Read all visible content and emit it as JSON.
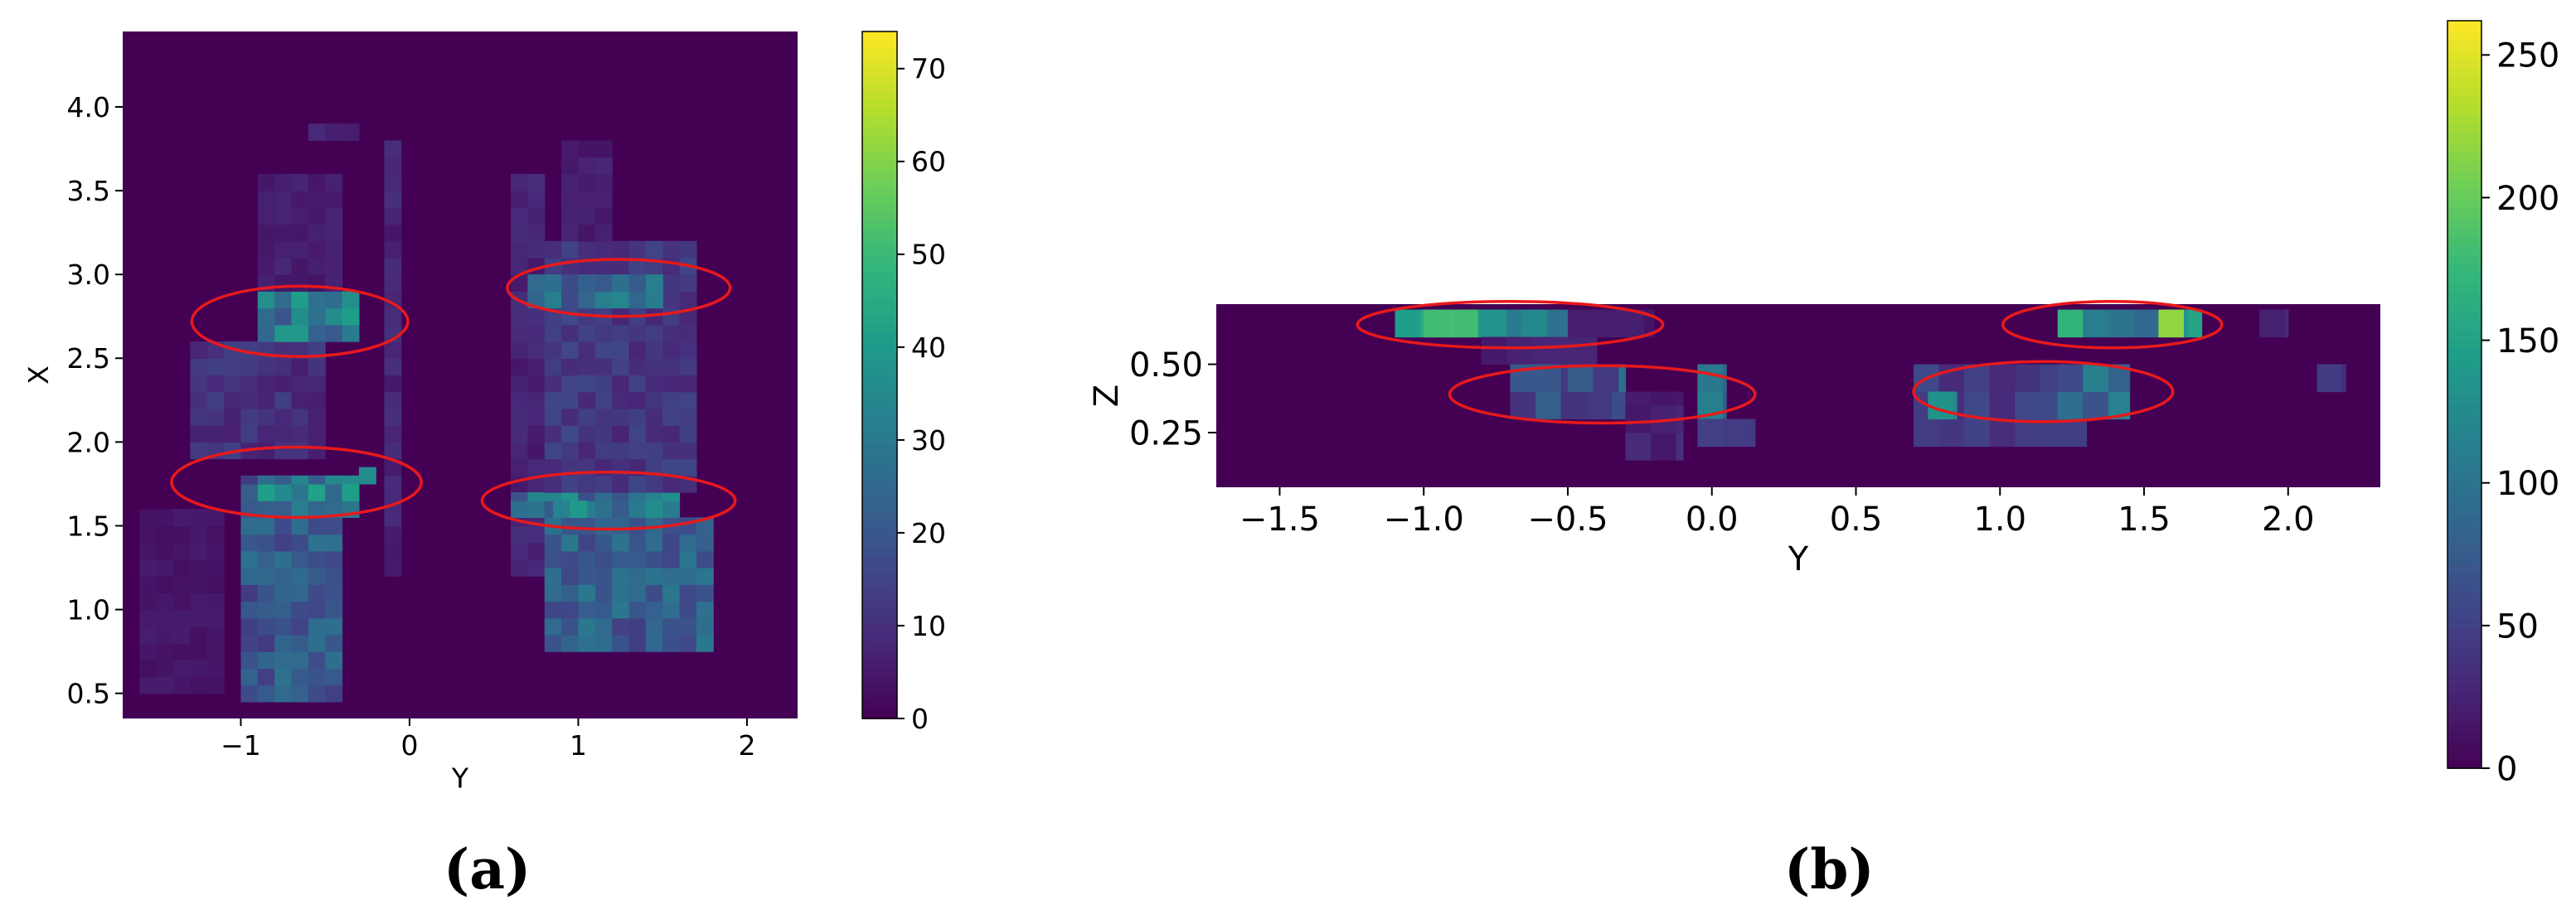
{
  "chart_data": [
    {
      "type": "heatmap",
      "panel": "(a)",
      "title": "",
      "xlabel": "Y",
      "ylabel": "X",
      "xlim": [
        -1.7,
        2.3
      ],
      "ylim": [
        0.35,
        4.45
      ],
      "xticks": [
        -1,
        0,
        1,
        2
      ],
      "xtick_labels": [
        "−1",
        "0",
        "1",
        "2"
      ],
      "yticks": [
        0.5,
        1.0,
        1.5,
        2.0,
        2.5,
        3.0,
        3.5,
        4.0
      ],
      "ytick_labels": [
        "0.5",
        "1.0",
        "1.5",
        "2.0",
        "2.5",
        "3.0",
        "3.5",
        "4.0"
      ],
      "bin_size": {
        "x": 0.1,
        "y": 0.1
      },
      "colorbar": {
        "min": 0,
        "max": 74,
        "ticks": [
          0,
          10,
          20,
          30,
          40,
          50,
          60,
          70
        ],
        "colormap": "viridis"
      },
      "clusters": [
        {
          "x": [
            -1.6,
            -1.1
          ],
          "y": [
            0.5,
            1.6
          ],
          "peak": 6
        },
        {
          "x": [
            -1.0,
            -0.4
          ],
          "y": [
            0.45,
            1.8
          ],
          "peak": 28
        },
        {
          "x": [
            -0.9,
            -0.3
          ],
          "y": [
            1.55,
            1.8
          ],
          "peak": 42
        },
        {
          "x": [
            -0.3,
            -0.2
          ],
          "y": [
            1.75,
            1.85
          ],
          "peak": 73
        },
        {
          "x": [
            -1.3,
            -0.5
          ],
          "y": [
            1.9,
            2.6
          ],
          "peak": 14
        },
        {
          "x": [
            -0.9,
            -0.3
          ],
          "y": [
            2.6,
            2.9
          ],
          "peak": 42
        },
        {
          "x": [
            -0.9,
            -0.4
          ],
          "y": [
            2.9,
            3.6
          ],
          "peak": 8
        },
        {
          "x": [
            -0.6,
            -0.3
          ],
          "y": [
            3.8,
            3.9
          ],
          "peak": 10
        },
        {
          "x": [
            -0.15,
            -0.05
          ],
          "y": [
            1.2,
            3.8
          ],
          "peak": 10
        },
        {
          "x": [
            0.6,
            0.8
          ],
          "y": [
            1.2,
            3.6
          ],
          "peak": 10
        },
        {
          "x": [
            0.8,
            1.8
          ],
          "y": [
            0.75,
            1.55
          ],
          "peak": 30
        },
        {
          "x": [
            0.6,
            1.6
          ],
          "y": [
            1.55,
            1.7
          ],
          "peak": 40
        },
        {
          "x": [
            0.85,
            1.05
          ],
          "y": [
            1.55,
            1.65
          ],
          "peak": 72
        },
        {
          "x": [
            0.8,
            1.7
          ],
          "y": [
            1.7,
            3.2
          ],
          "peak": 16
        },
        {
          "x": [
            0.7,
            1.5
          ],
          "y": [
            2.8,
            3.0
          ],
          "peak": 35
        },
        {
          "x": [
            0.9,
            1.2
          ],
          "y": [
            3.2,
            3.8
          ],
          "peak": 8
        }
      ],
      "annotations": [
        {
          "shape": "ellipse",
          "cx": -0.65,
          "cy": 2.72,
          "rx": 0.64,
          "ry": 0.21,
          "color": "#e8191b"
        },
        {
          "shape": "ellipse",
          "cx": -0.67,
          "cy": 1.76,
          "rx": 0.74,
          "ry": 0.21,
          "color": "#e8191b"
        },
        {
          "shape": "ellipse",
          "cx": 1.24,
          "cy": 2.92,
          "rx": 0.66,
          "ry": 0.17,
          "color": "#e8191b"
        },
        {
          "shape": "ellipse",
          "cx": 1.18,
          "cy": 1.65,
          "rx": 0.75,
          "ry": 0.17,
          "color": "#e8191b"
        }
      ]
    },
    {
      "type": "heatmap",
      "panel": "(b)",
      "title": "",
      "xlabel": "Y",
      "ylabel": "Z",
      "xlim": [
        -1.72,
        2.32
      ],
      "ylim": [
        0.05,
        0.72
      ],
      "xticks": [
        -1.5,
        -1.0,
        -0.5,
        0.0,
        0.5,
        1.0,
        1.5,
        2.0
      ],
      "xtick_labels": [
        "−1.5",
        "−1.0",
        "−0.5",
        "0.0",
        "0.5",
        "1.0",
        "1.5",
        "2.0"
      ],
      "yticks": [
        0.25,
        0.5
      ],
      "ytick_labels": [
        "0.25",
        "0.50"
      ],
      "bin_size": {
        "x": 0.088,
        "y": 0.1
      },
      "colorbar": {
        "min": 0,
        "max": 262,
        "ticks": [
          0,
          50,
          100,
          150,
          200,
          250
        ],
        "colormap": "viridis"
      },
      "clusters": [
        {
          "x": [
            -1.1,
            -0.5
          ],
          "y": [
            0.6,
            0.7
          ],
          "peak": 170
        },
        {
          "x": [
            -1.0,
            -0.9
          ],
          "y": [
            0.6,
            0.7
          ],
          "peak": 255
        },
        {
          "x": [
            -0.9,
            -0.8
          ],
          "y": [
            0.6,
            0.7
          ],
          "peak": 210
        },
        {
          "x": [
            -0.8,
            -0.7
          ],
          "y": [
            0.6,
            0.7
          ],
          "peak": 175
        },
        {
          "x": [
            -0.5,
            -0.2
          ],
          "y": [
            0.6,
            0.7
          ],
          "peak": 25
        },
        {
          "x": [
            -0.8,
            -0.4
          ],
          "y": [
            0.5,
            0.6
          ],
          "peak": 30
        },
        {
          "x": [
            -0.7,
            -0.3
          ],
          "y": [
            0.3,
            0.5
          ],
          "peak": 80
        },
        {
          "x": [
            -0.5,
            -0.3
          ],
          "y": [
            0.4,
            0.5
          ],
          "peak": 95
        },
        {
          "x": [
            -0.3,
            -0.1
          ],
          "y": [
            0.15,
            0.4
          ],
          "peak": 35
        },
        {
          "x": [
            -0.05,
            0.05
          ],
          "y": [
            0.3,
            0.5
          ],
          "peak": 145
        },
        {
          "x": [
            -0.05,
            0.15
          ],
          "y": [
            0.2,
            0.3
          ],
          "peak": 55
        },
        {
          "x": [
            0.7,
            1.3
          ],
          "y": [
            0.2,
            0.5
          ],
          "peak": 60
        },
        {
          "x": [
            0.75,
            0.85
          ],
          "y": [
            0.3,
            0.4
          ],
          "peak": 170
        },
        {
          "x": [
            1.2,
            1.45
          ],
          "y": [
            0.3,
            0.5
          ],
          "peak": 115
        },
        {
          "x": [
            1.2,
            1.7
          ],
          "y": [
            0.6,
            0.7
          ],
          "peak": 185
        },
        {
          "x": [
            1.55,
            1.65
          ],
          "y": [
            0.6,
            0.7
          ],
          "peak": 255
        },
        {
          "x": [
            1.9,
            2.0
          ],
          "y": [
            0.6,
            0.7
          ],
          "peak": 40
        },
        {
          "x": [
            2.1,
            2.2
          ],
          "y": [
            0.4,
            0.5
          ],
          "peak": 50
        }
      ],
      "annotations": [
        {
          "shape": "ellipse",
          "cx": -0.7,
          "cy": 0.645,
          "rx": 0.53,
          "ry": 0.085,
          "color": "#e8191b"
        },
        {
          "shape": "ellipse",
          "cx": -0.38,
          "cy": 0.39,
          "rx": 0.53,
          "ry": 0.105,
          "color": "#e8191b"
        },
        {
          "shape": "ellipse",
          "cx": 1.39,
          "cy": 0.645,
          "rx": 0.38,
          "ry": 0.085,
          "color": "#e8191b"
        },
        {
          "shape": "ellipse",
          "cx": 1.15,
          "cy": 0.4,
          "rx": 0.45,
          "ry": 0.11,
          "color": "#e8191b"
        }
      ]
    }
  ],
  "captions": {
    "a": "(a)",
    "b": "(b)"
  },
  "colors": {
    "annotation": "#e8191b",
    "background": "#440154"
  }
}
